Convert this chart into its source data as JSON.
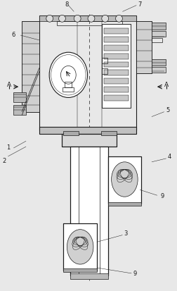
{
  "bg_color": "#e8e8e8",
  "line_color": "#1a1a1a",
  "white": "#ffffff",
  "gray_light": "#cccccc",
  "gray_med": "#aaaaaa",
  "gray_dark": "#888888"
}
